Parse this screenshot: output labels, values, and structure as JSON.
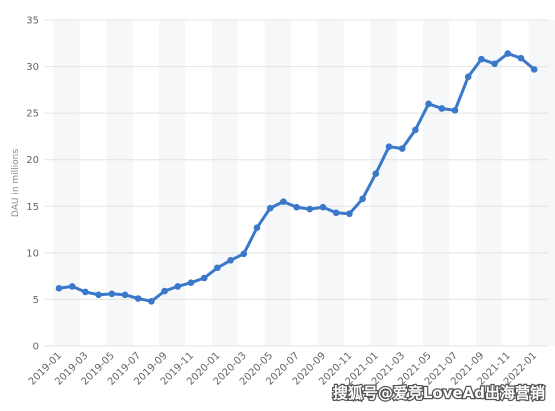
{
  "chart_data": {
    "type": "line",
    "ylabel": "DAU in millions",
    "categories": [
      "2019-01",
      null,
      "2019-03",
      null,
      "2019-05",
      null,
      "2019-07",
      null,
      "2019-09",
      null,
      "2019-11",
      null,
      "2020-01",
      null,
      "2020-03",
      null,
      "2020-05",
      null,
      "2020-07",
      null,
      "2020-09",
      null,
      "2020-11",
      null,
      "2021-01",
      null,
      "2021-03",
      null,
      "2021-05",
      null,
      "2021-07",
      null,
      "2021-09",
      null,
      "2021-11",
      null,
      "2022-01"
    ],
    "series": [
      {
        "color": "#3a78c9",
        "values": [
          6.2,
          6.4,
          5.8,
          5.5,
          5.6,
          5.5,
          5.1,
          4.8,
          5.9,
          6.4,
          6.8,
          7.3,
          8.4,
          9.2,
          9.9,
          12.7,
          14.8,
          15.5,
          14.9,
          14.7,
          14.9,
          14.3,
          14.2,
          15.8,
          18.5,
          21.4,
          21.2,
          23.2,
          26.0,
          25.5,
          25.3,
          28.9,
          30.8,
          30.3,
          31.4,
          30.9,
          29.7
        ]
      }
    ],
    "ylim": [
      0,
      35
    ],
    "yticks": [
      0,
      5,
      10,
      15,
      20,
      25,
      30,
      35
    ],
    "grid": true,
    "watermark": "搜狐号@爱竞LoveAd出海营销"
  }
}
